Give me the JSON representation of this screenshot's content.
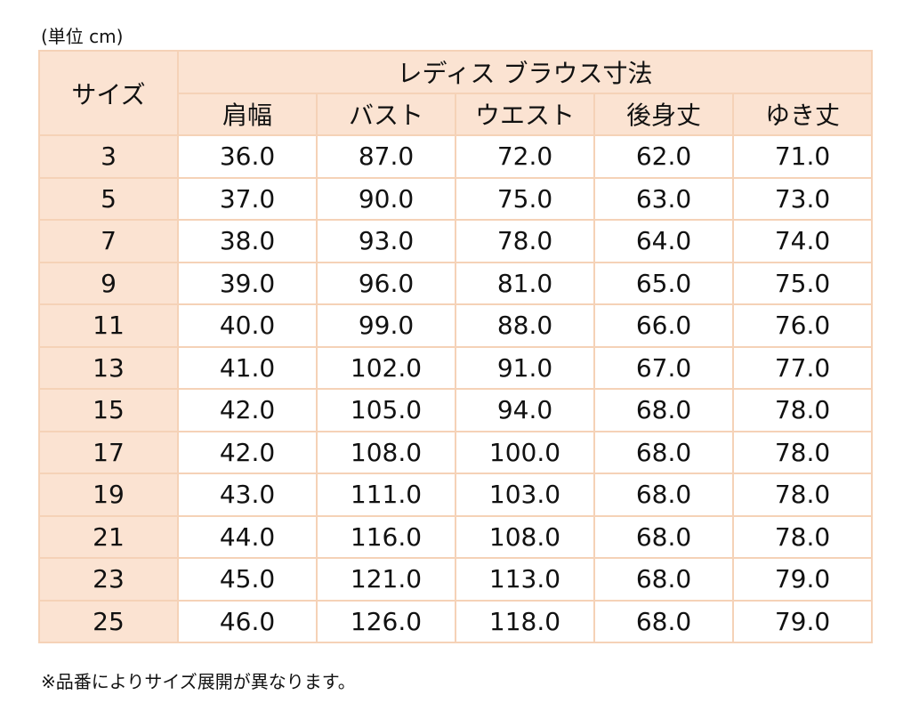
{
  "unit_note": "(単位 cm)",
  "table": {
    "size_header": "サイズ",
    "title": "レディス ブラウス寸法",
    "columns": [
      "肩幅",
      "バスト",
      "ウエスト",
      "後身丈",
      "ゆき丈"
    ],
    "rows": [
      {
        "size": "3",
        "values": [
          "36.0",
          "87.0",
          "72.0",
          "62.0",
          "71.0"
        ]
      },
      {
        "size": "5",
        "values": [
          "37.0",
          "90.0",
          "75.0",
          "63.0",
          "73.0"
        ]
      },
      {
        "size": "7",
        "values": [
          "38.0",
          "93.0",
          "78.0",
          "64.0",
          "74.0"
        ]
      },
      {
        "size": "9",
        "values": [
          "39.0",
          "96.0",
          "81.0",
          "65.0",
          "75.0"
        ]
      },
      {
        "size": "11",
        "values": [
          "40.0",
          "99.0",
          "88.0",
          "66.0",
          "76.0"
        ]
      },
      {
        "size": "13",
        "values": [
          "41.0",
          "102.0",
          "91.0",
          "67.0",
          "77.0"
        ]
      },
      {
        "size": "15",
        "values": [
          "42.0",
          "105.0",
          "94.0",
          "68.0",
          "78.0"
        ]
      },
      {
        "size": "17",
        "values": [
          "42.0",
          "108.0",
          "100.0",
          "68.0",
          "78.0"
        ]
      },
      {
        "size": "19",
        "values": [
          "43.0",
          "111.0",
          "103.0",
          "68.0",
          "78.0"
        ]
      },
      {
        "size": "21",
        "values": [
          "44.0",
          "116.0",
          "108.0",
          "68.0",
          "78.0"
        ]
      },
      {
        "size": "23",
        "values": [
          "45.0",
          "121.0",
          "113.0",
          "68.0",
          "79.0"
        ]
      },
      {
        "size": "25",
        "values": [
          "46.0",
          "126.0",
          "118.0",
          "68.0",
          "79.0"
        ]
      }
    ]
  },
  "footnote": "※品番によりサイズ展開が異なります。",
  "colors": {
    "header_fill": "#fbe3d2",
    "border": "#f5d2b7",
    "cell_fill": "#ffffff",
    "text": "#111111"
  }
}
